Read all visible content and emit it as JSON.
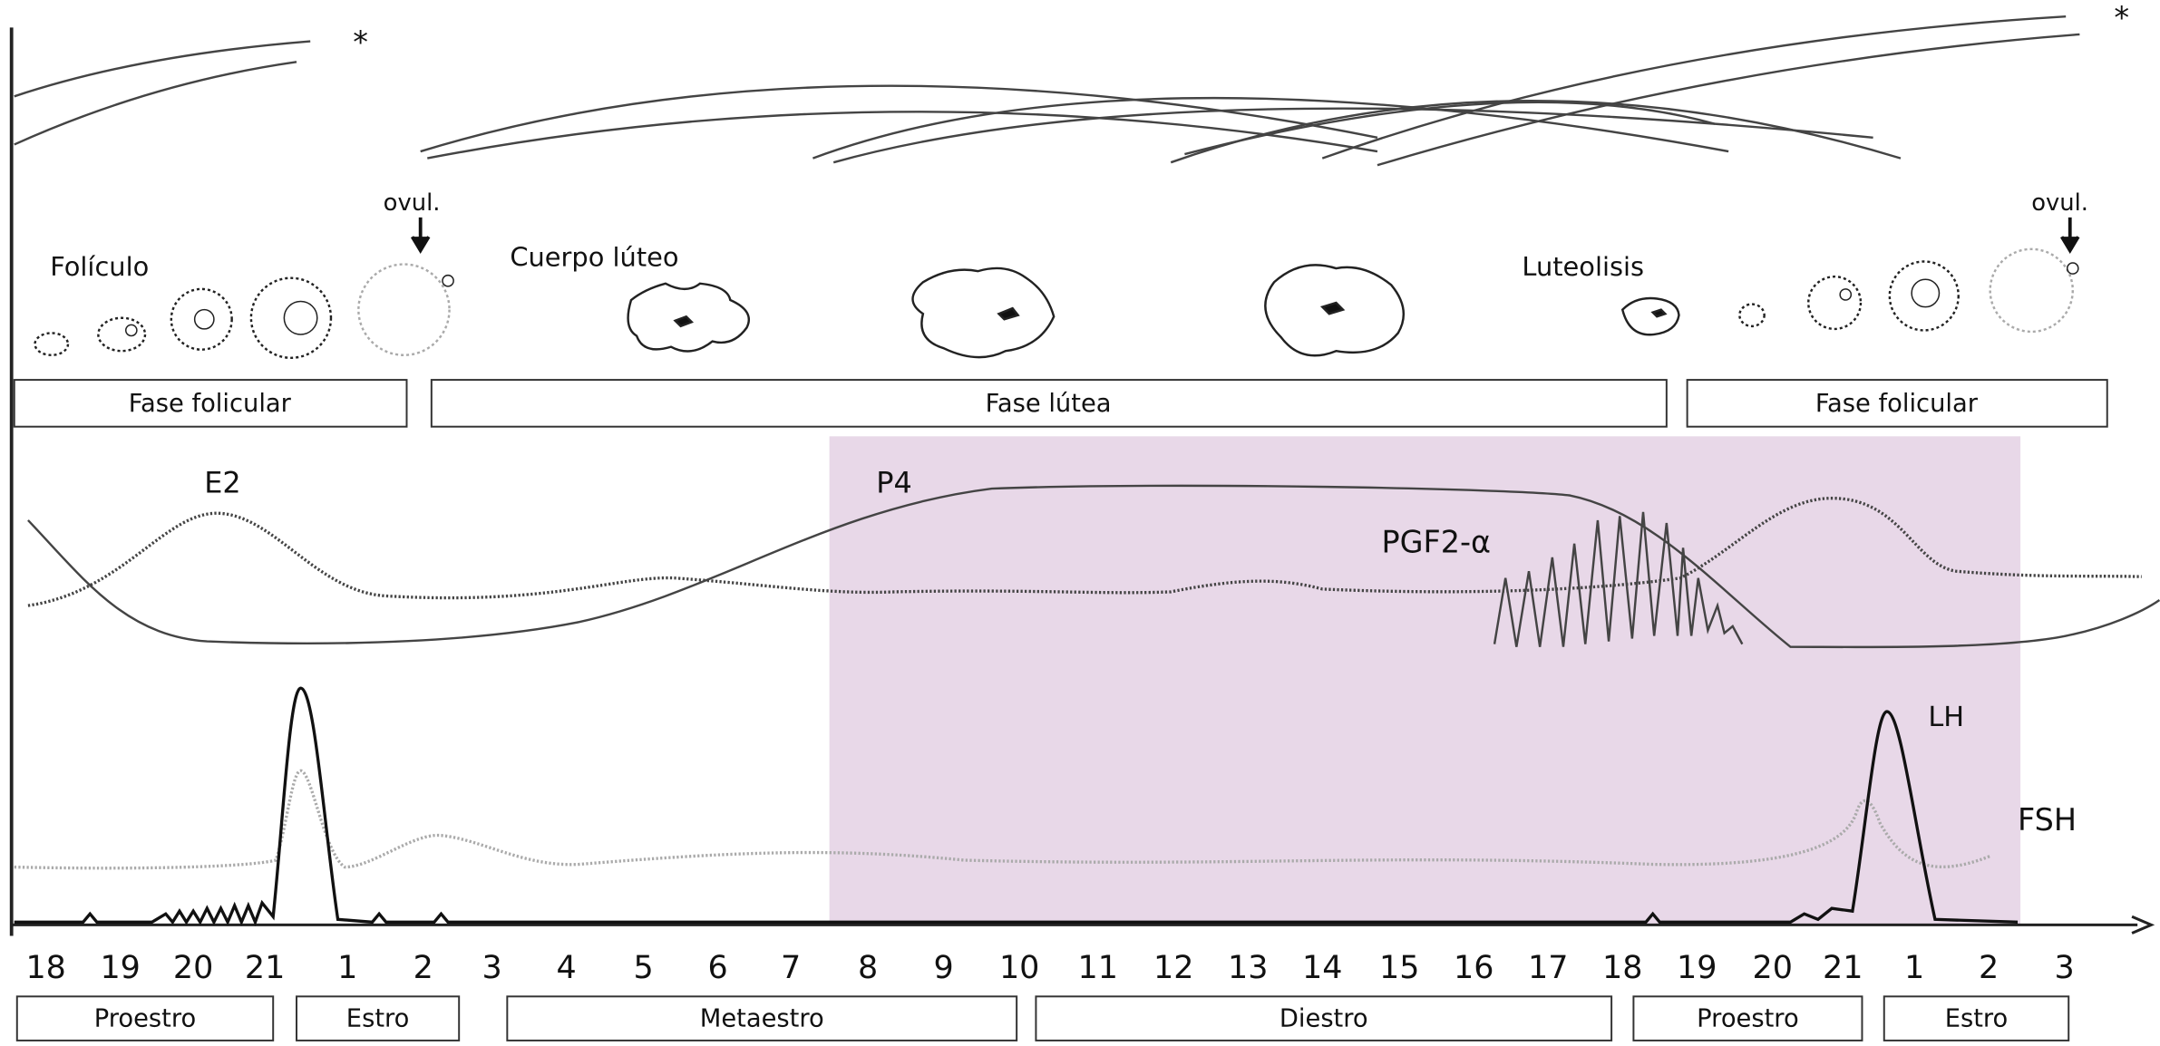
{
  "labels": {
    "follicle": "Folículo",
    "corpus_luteum": "Cuerpo lúteo",
    "luteolysis": "Luteolisis",
    "ovulation": [
      "ovul.",
      "ovul."
    ],
    "markers": [
      "*",
      "*"
    ]
  },
  "phases": [
    "Fase folicular",
    "Fase lútea",
    "Fase folicular"
  ],
  "hormones": [
    "E2",
    "P4",
    "PGF2-α",
    "LH",
    "FSH"
  ],
  "days": [
    18,
    19,
    20,
    21,
    1,
    2,
    3,
    4,
    5,
    6,
    7,
    8,
    9,
    10,
    11,
    12,
    13,
    14,
    15,
    16,
    17,
    18,
    19,
    20,
    21,
    1,
    2,
    3
  ],
  "stages": [
    "Proestro",
    "Estro",
    "Metaestro",
    "Diestro",
    "Proestro",
    "Estro"
  ]
}
